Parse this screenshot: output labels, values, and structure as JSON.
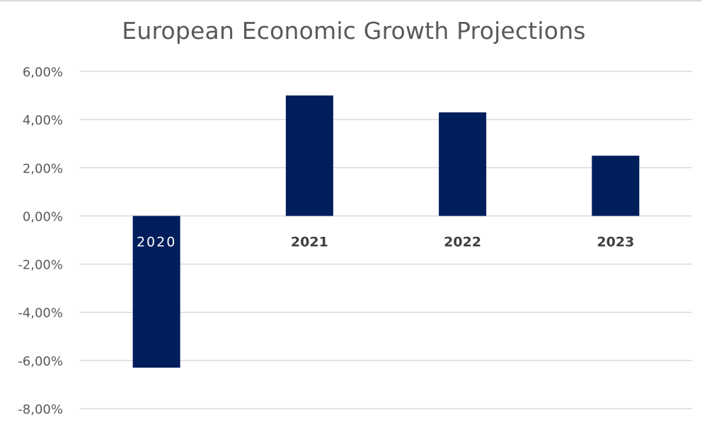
{
  "chart_data": {
    "type": "bar",
    "title": "European Economic Growth Projections",
    "categories": [
      "2020",
      "2021",
      "2022",
      "2023"
    ],
    "values": [
      -6.3,
      5.0,
      4.3,
      2.5
    ],
    "unit": "%",
    "ylim": [
      -8,
      6
    ],
    "yticks": [
      6,
      4,
      2,
      0,
      -2,
      -4,
      -6,
      -8
    ],
    "ytick_labels": [
      "6,00%",
      "4,00%",
      "2,00%",
      "0,00%",
      "-2,00%",
      "-4,00%",
      "-6,00%",
      "-8,00%"
    ],
    "grid": true,
    "legend": "none",
    "bar_color": "#001d5c",
    "grid_color": "#d9d9d9",
    "tick_color": "#595959"
  }
}
